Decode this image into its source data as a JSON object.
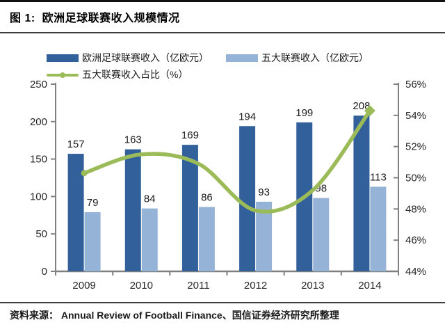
{
  "header": {
    "title": "图 1:  欧洲足球联赛收入规模情况"
  },
  "legend": [
    {
      "label": "欧洲足球联赛收入（亿欧元）",
      "type": "bar",
      "color": "#31609A"
    },
    {
      "label": "五大联赛收入（亿欧元）",
      "type": "bar",
      "color": "#95B3D7"
    },
    {
      "label": "五大联赛收入占比（%）",
      "type": "line",
      "color": "#9BBB59"
    }
  ],
  "chart_data": {
    "type": "bar",
    "subtype": "bar+line combo, dual axis",
    "categories": [
      "2009",
      "2010",
      "2011",
      "2012",
      "2013",
      "2014"
    ],
    "series": [
      {
        "name": "欧洲足球联赛收入（亿欧元）",
        "type": "bar",
        "axis": "left",
        "color": "#31609A",
        "values": [
          157,
          163,
          169,
          194,
          199,
          208
        ]
      },
      {
        "name": "五大联赛收入（亿欧元）",
        "type": "bar",
        "axis": "left",
        "color": "#95B3D7",
        "values": [
          79,
          84,
          86,
          93,
          98,
          113
        ]
      },
      {
        "name": "五大联赛收入占比（%）",
        "type": "line",
        "axis": "right",
        "color": "#9BBB59",
        "values": [
          50.3,
          51.5,
          50.9,
          47.9,
          49.2,
          54.3
        ]
      }
    ],
    "left_axis": {
      "min": 0,
      "max": 250,
      "step": 50,
      "ticks": [
        "0",
        "50",
        "100",
        "150",
        "200",
        "250"
      ]
    },
    "right_axis": {
      "min": 44,
      "max": 56,
      "step": 2,
      "ticks": [
        "44%",
        "46%",
        "48%",
        "50%",
        "52%",
        "54%",
        "56%"
      ]
    },
    "grid": false,
    "legend_position": "top",
    "data_labels_on_bars": true,
    "axis_color": "#808080",
    "tick_label_color": "#262626",
    "bar_label_color": "#1a1a1a"
  },
  "footer": {
    "source": "资料来源： Annual Review of Football Finance、国信证券经济研究所整理"
  }
}
